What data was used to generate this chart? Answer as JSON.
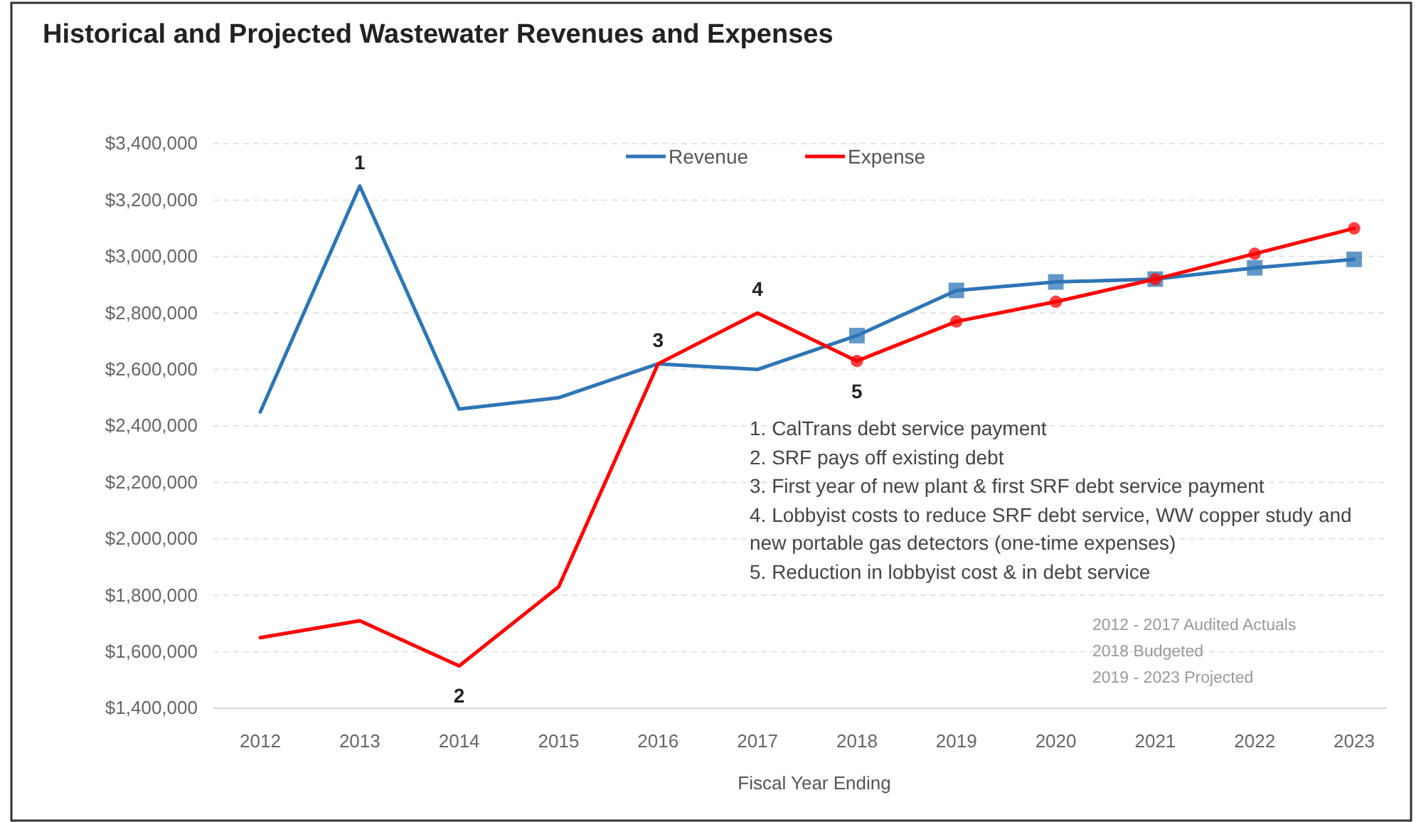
{
  "chart_data": {
    "type": "line",
    "title": "Historical and Projected Wastewater Revenues and Expenses",
    "xlabel": "Fiscal Year Ending",
    "categories": [
      "2012",
      "2013",
      "2014",
      "2015",
      "2016",
      "2017",
      "2018",
      "2019",
      "2020",
      "2021",
      "2022",
      "2023"
    ],
    "series": [
      {
        "name": "Revenue",
        "color": "#2e75b6",
        "values": [
          2450000,
          3250000,
          2460000,
          2500000,
          2620000,
          2600000,
          2720000,
          null,
          null,
          null,
          null,
          null
        ]
      },
      {
        "name": "Expense",
        "color": "#ff0000",
        "values": [
          1650000,
          1710000,
          1550000,
          1830000,
          2620000,
          2800000,
          2630000,
          null,
          null,
          null,
          null,
          null
        ]
      },
      {
        "color": "#2e75b6",
        "marker": "square",
        "values": [
          null,
          null,
          null,
          null,
          null,
          null,
          2720000,
          2880000,
          2910000,
          2920000,
          2960000,
          2990000
        ]
      },
      {
        "color": "#ff0000",
        "marker": "circle",
        "values": [
          null,
          null,
          null,
          null,
          null,
          null,
          2630000,
          2770000,
          2840000,
          2920000,
          3010000,
          3100000
        ]
      }
    ],
    "ylim": [
      1400000,
      3400000
    ],
    "yticks": [
      {
        "value": 1400000,
        "label": "$1,400,000"
      },
      {
        "value": 1600000,
        "label": "$1,600,000"
      },
      {
        "value": 1800000,
        "label": "$1,800,000"
      },
      {
        "value": 2000000,
        "label": "$2,000,000"
      },
      {
        "value": 2200000,
        "label": "$2,200,000"
      },
      {
        "value": 2400000,
        "label": "$2,400,000"
      },
      {
        "value": 2600000,
        "label": "$2,600,000"
      },
      {
        "value": 2800000,
        "label": "$2,800,000"
      },
      {
        "value": 3000000,
        "label": "$3,000,000"
      },
      {
        "value": 3200000,
        "label": "$3,200,000"
      },
      {
        "value": 3400000,
        "label": "$3,400,000"
      }
    ],
    "grid": "y",
    "legend": "top",
    "annotations": [
      {
        "text": "1",
        "x": "2013",
        "y": 3250000
      },
      {
        "text": "2",
        "x": "2014",
        "y": 1550000
      },
      {
        "text": "3",
        "x": "2016",
        "y": 2620000
      },
      {
        "text": "4",
        "x": "2017",
        "y": 2800000
      },
      {
        "text": "5",
        "x": "2018",
        "y": 2630000
      },
      "1. CalTrans debt service payment",
      "2. SRF pays off existing debt",
      "3. First year of new plant & first SRF debt service payment",
      "4. Lobbyist costs to reduce SRF debt service, WW copper study and new portable gas detectors (one-time expenses)",
      "5. Reduction in lobbyist cost & in debt service",
      "2012 - 2017 Audited Actuals",
      "2018 Budgeted",
      "2019 - 2023 Projected"
    ]
  }
}
